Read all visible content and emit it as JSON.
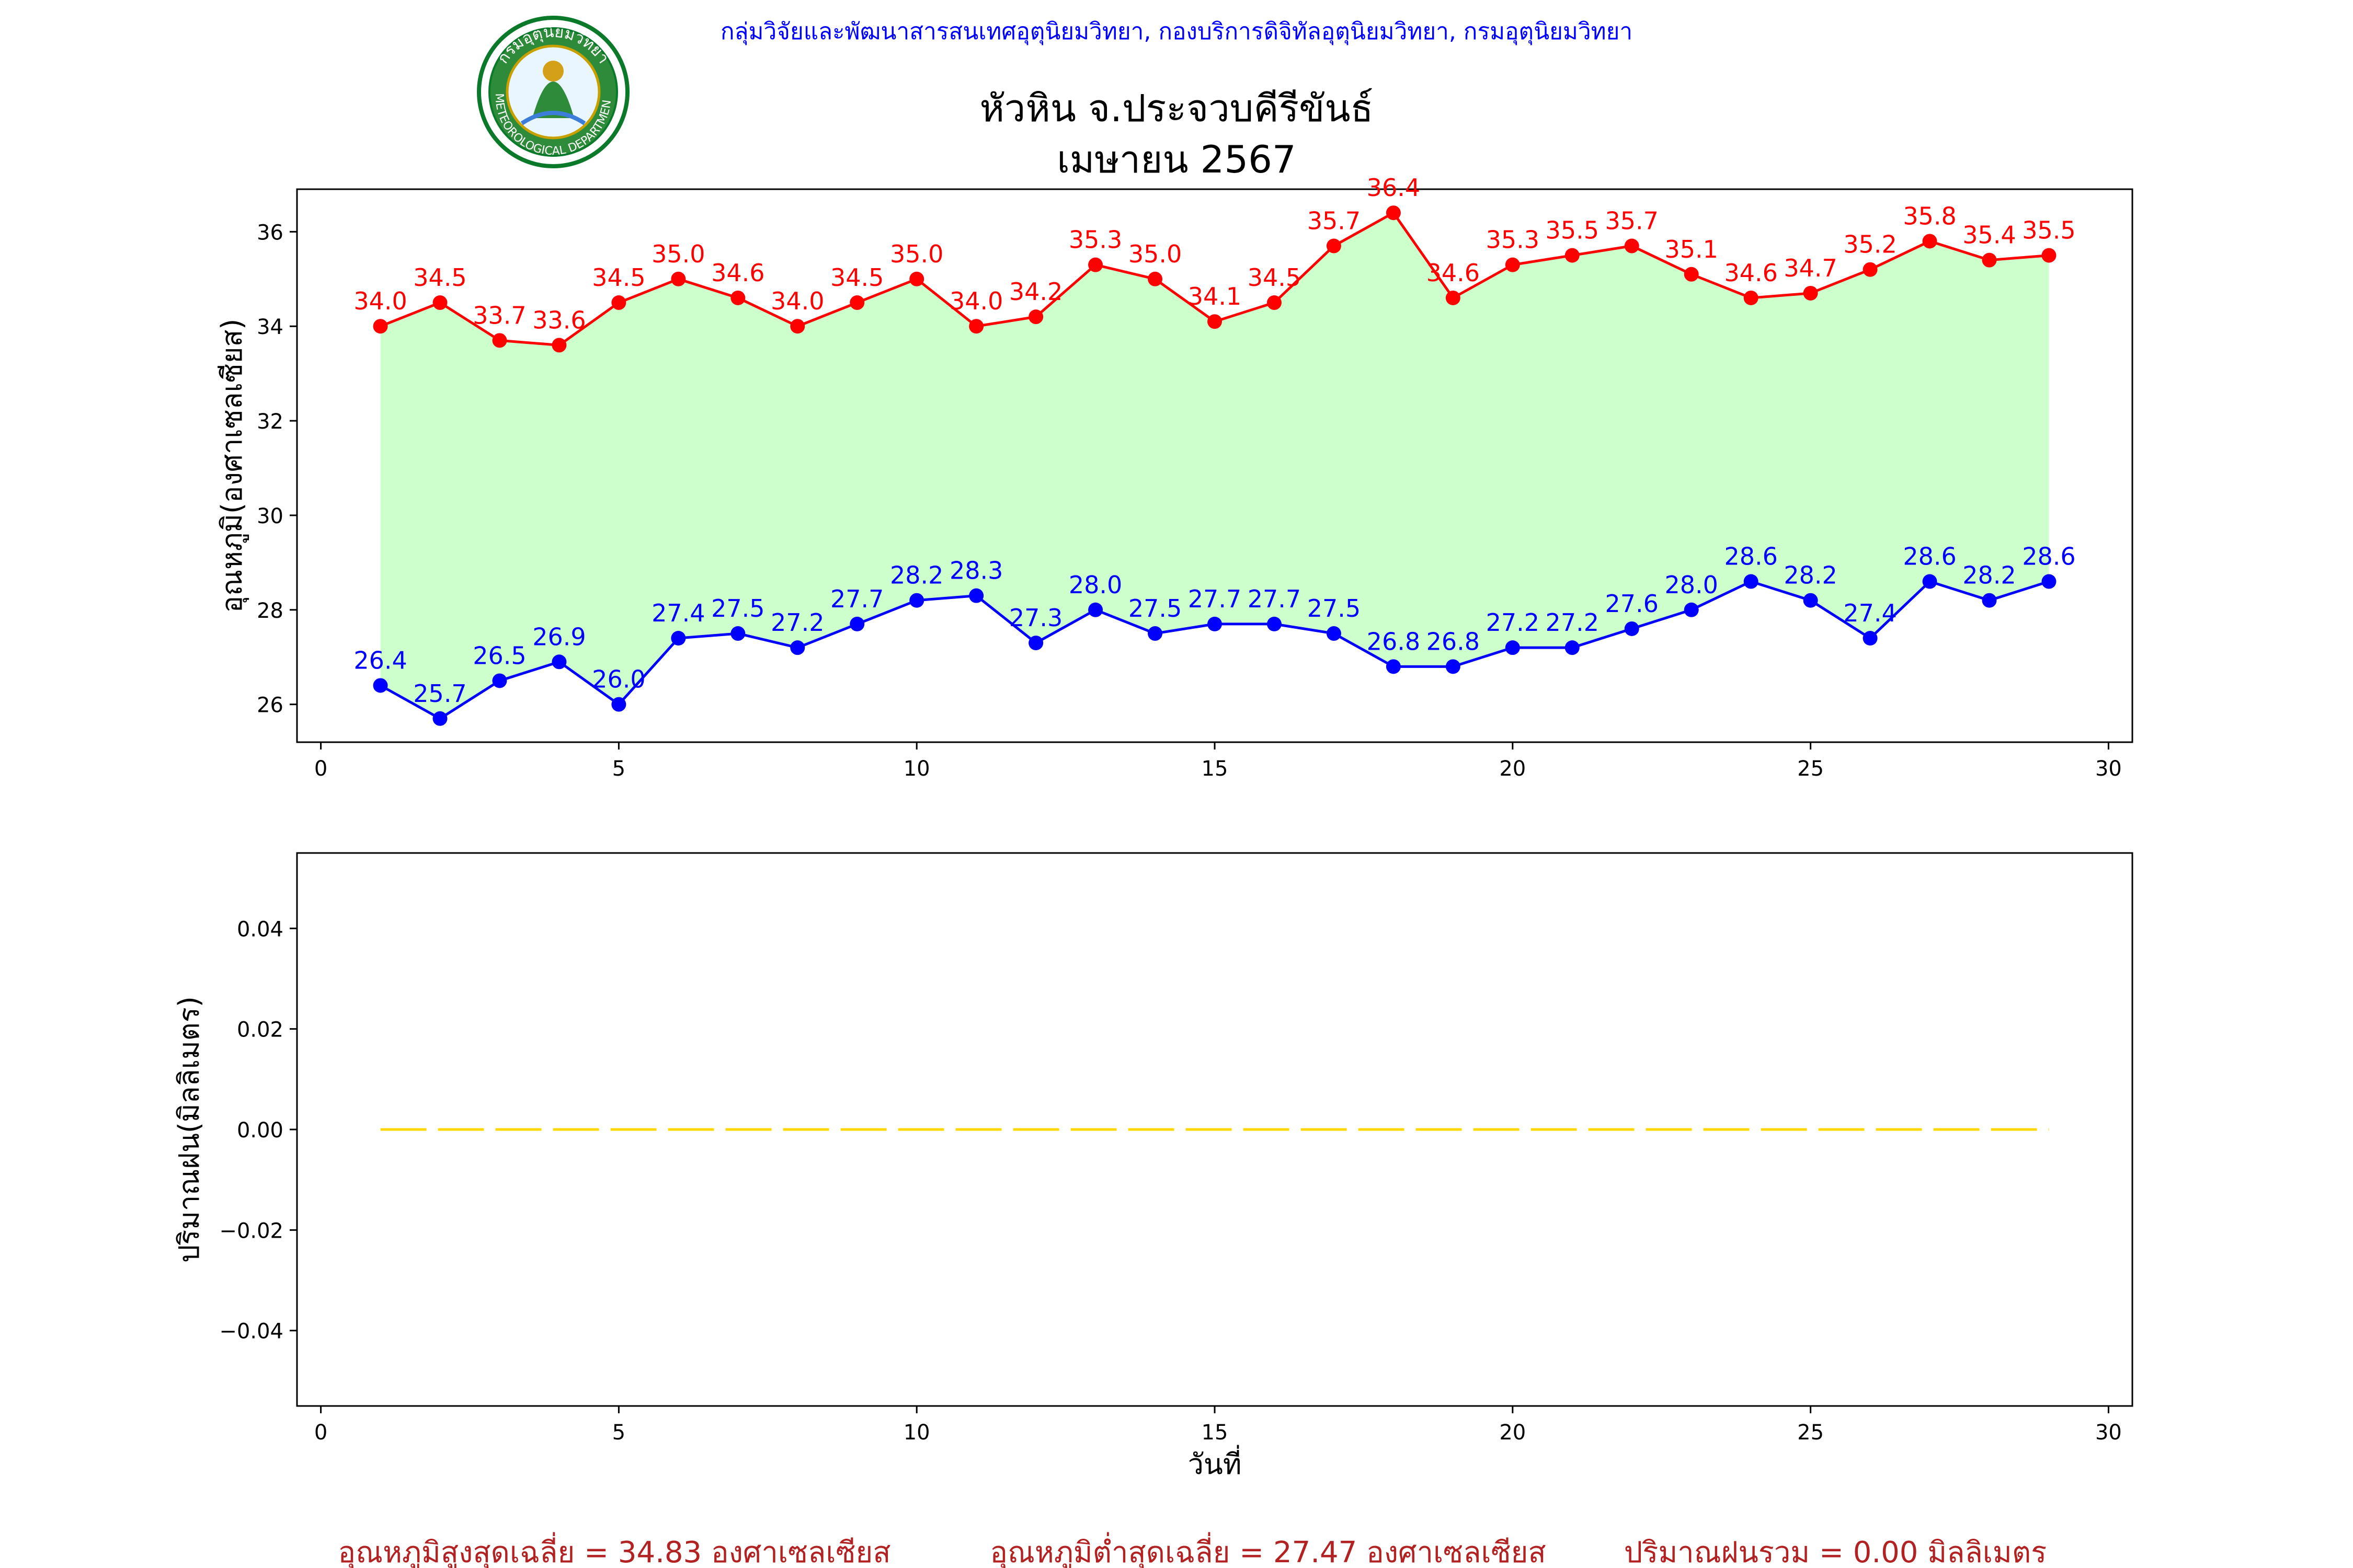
{
  "header": {
    "department_line": "กลุ่มวิจัยและพัฒนาสารสนเทศอุตุนิยมวิทยา, กองบริการดิจิทัลอุตุนิยมวิทยา, กรมอุตุนิยมวิทยา",
    "station_title": "หัวหิน จ.ประจวบคีรีขันธ์",
    "period_title": "เมษายน 2567",
    "logo": {
      "top_text": "กรมอุตุนิยมวิทยา",
      "bottom_text": "METEOROLOGICAL DEPARTMENT"
    }
  },
  "colors": {
    "max_line": "#ff0000",
    "min_line": "#0000ff",
    "fill": "#ccffcc",
    "rain_line": "#ffd700",
    "summary_text": "#b22222",
    "header_text": "#0000ff"
  },
  "chart_data": [
    {
      "type": "line",
      "x": [
        1,
        2,
        3,
        4,
        5,
        6,
        7,
        8,
        9,
        10,
        11,
        12,
        13,
        14,
        15,
        16,
        17,
        18,
        19,
        20,
        21,
        22,
        23,
        24,
        25,
        26,
        27,
        28,
        29
      ],
      "series": [
        {
          "values": [
            34.0,
            34.5,
            33.7,
            33.6,
            34.5,
            35.0,
            34.6,
            34.0,
            34.5,
            35.0,
            34.0,
            34.2,
            35.3,
            35.0,
            34.1,
            34.5,
            35.7,
            36.4,
            34.6,
            35.3,
            35.5,
            35.7,
            35.1,
            34.6,
            34.7,
            35.2,
            35.8,
            35.4,
            35.5
          ],
          "labels": [
            "34.0",
            "34.5",
            "33.7",
            "33.6",
            "34.5",
            "35.0",
            "34.6",
            "34.0",
            "34.5",
            "35.0",
            "34.0",
            "34.2",
            "35.3",
            "35.0",
            "34.1",
            "34.5",
            "35.7",
            "36.4",
            "34.6",
            "35.3",
            "35.5",
            "35.7",
            "35.1",
            "34.6",
            "34.7",
            "35.2",
            "35.8",
            "35.4",
            "35.5"
          ],
          "color": "#ff0000"
        },
        {
          "values": [
            26.4,
            25.7,
            26.5,
            26.9,
            26.0,
            27.4,
            27.5,
            27.2,
            27.7,
            28.2,
            28.3,
            27.3,
            28.0,
            27.5,
            27.7,
            27.7,
            27.5,
            26.8,
            26.8,
            27.2,
            27.2,
            27.6,
            28.0,
            28.6,
            28.2,
            27.4,
            28.6,
            28.2,
            28.6
          ],
          "labels": [
            "26.4",
            "25.7",
            "26.5",
            "26.9",
            "26.0",
            "27.4",
            "27.5",
            "27.2",
            "27.7",
            "28.2",
            "28.3",
            "27.3",
            "28.0",
            "27.5",
            "27.7",
            "27.7",
            "27.5",
            "26.8",
            "26.8",
            "27.2",
            "27.2",
            "27.6",
            "28.0",
            "28.6",
            "28.2",
            "27.4",
            "28.6",
            "28.2",
            "28.6"
          ],
          "color": "#0000ff"
        }
      ],
      "fill_between": true,
      "ylabel": "อุณหภูมิ(องศาเซลเซียส)",
      "xlabel": "",
      "xlim": [
        -0.4,
        30.4
      ],
      "ylim": [
        25.2,
        36.9
      ],
      "xticks": [
        0,
        5,
        10,
        15,
        20,
        25,
        30
      ],
      "xtick_labels": [
        "0",
        "5",
        "10",
        "15",
        "20",
        "25",
        "30"
      ],
      "yticks": [
        26,
        28,
        30,
        32,
        34,
        36
      ],
      "ytick_labels": [
        "26",
        "28",
        "30",
        "32",
        "34",
        "36"
      ],
      "grid": false
    },
    {
      "type": "line",
      "x": [
        1,
        2,
        3,
        4,
        5,
        6,
        7,
        8,
        9,
        10,
        11,
        12,
        13,
        14,
        15,
        16,
        17,
        18,
        19,
        20,
        21,
        22,
        23,
        24,
        25,
        26,
        27,
        28,
        29
      ],
      "series": [
        {
          "values": [
            0,
            0,
            0,
            0,
            0,
            0,
            0,
            0,
            0,
            0,
            0,
            0,
            0,
            0,
            0,
            0,
            0,
            0,
            0,
            0,
            0,
            0,
            0,
            0,
            0,
            0,
            0,
            0,
            0
          ],
          "color": "#ffd700",
          "style": "dashed"
        }
      ],
      "ylabel": "ปริมาณฝน(มิลลิเมตร)",
      "xlabel": "วันที่",
      "xlim": [
        -0.4,
        30.4
      ],
      "ylim": [
        -0.055,
        0.055
      ],
      "xticks": [
        0,
        5,
        10,
        15,
        20,
        25,
        30
      ],
      "xtick_labels": [
        "0",
        "5",
        "10",
        "15",
        "20",
        "25",
        "30"
      ],
      "yticks": [
        -0.04,
        -0.02,
        0.0,
        0.02,
        0.04
      ],
      "ytick_labels": [
        "−0.04",
        "−0.02",
        "0.00",
        "0.02",
        "0.04"
      ],
      "grid": false
    }
  ],
  "summary": {
    "avg_max": "อุณหภูมิสูงสุดเฉลี่ย = 34.83 องศาเซลเซียส",
    "avg_min": "อุณหภูมิต่ำสุดเฉลี่ย = 27.47 องศาเซลเซียส",
    "rain_total": "ปริมาณฝนรวม = 0.00 มิลลิเมตร"
  }
}
